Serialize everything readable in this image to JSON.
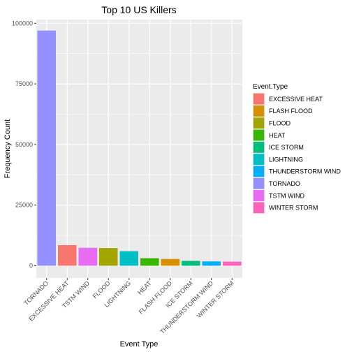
{
  "chart_data": {
    "type": "bar",
    "title": "Top 10 US Killers",
    "xlabel": "Event Type",
    "ylabel": "Frequency Count",
    "ylim": [
      0,
      100000
    ],
    "yticks": [
      0,
      25000,
      50000,
      75000,
      100000
    ],
    "ytick_labels": [
      "0",
      "25000",
      "50000",
      "75000",
      "100000"
    ],
    "categories": [
      "TORNADO",
      "EXCESSIVE HEAT",
      "TSTM WIND",
      "FLOOD",
      "LIGHTNING",
      "HEAT",
      "FLASH FLOOD",
      "ICE STORM",
      "THUNDERSTORM WIND",
      "WINTER STORM"
    ],
    "values": [
      97000,
      8500,
      7400,
      7300,
      6000,
      3100,
      2800,
      2000,
      1800,
      1700
    ],
    "bar_colors": [
      "#9590FF",
      "#F8766D",
      "#E76BF3",
      "#A3A500",
      "#00BFC4",
      "#39B600",
      "#D89000",
      "#00BF7D",
      "#00B0F6",
      "#FF62BC"
    ],
    "grid": true,
    "legend": {
      "title": "Event.Type",
      "position": "right",
      "items": [
        {
          "label": "EXCESSIVE HEAT",
          "color": "#F8766D"
        },
        {
          "label": "FLASH FLOOD",
          "color": "#D89000"
        },
        {
          "label": "FLOOD",
          "color": "#A3A500"
        },
        {
          "label": "HEAT",
          "color": "#39B600"
        },
        {
          "label": "ICE STORM",
          "color": "#00BF7D"
        },
        {
          "label": "LIGHTNING",
          "color": "#00BFC4"
        },
        {
          "label": "THUNDERSTORM WIND",
          "color": "#00B0F6"
        },
        {
          "label": "TORNADO",
          "color": "#9590FF"
        },
        {
          "label": "TSTM WIND",
          "color": "#E76BF3"
        },
        {
          "label": "WINTER STORM",
          "color": "#FF62BC"
        }
      ]
    }
  }
}
